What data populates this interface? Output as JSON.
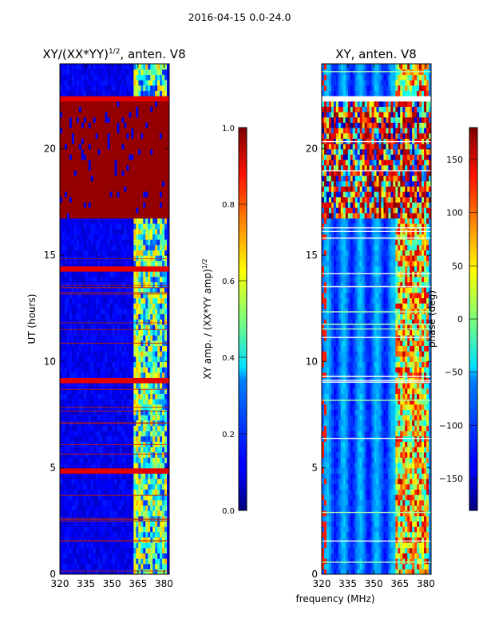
{
  "figure": {
    "suptitle": "2016-04-15 0.0-24.0",
    "shared_xlabel": "frequency (MHz)"
  },
  "chart_data": [
    {
      "type": "heatmap",
      "title": "XY/(XX*YY)^{1/2}, anten. V8",
      "title_main": "XY/(XX*YY)",
      "title_sup": "1/2",
      "title_rest": ", anten. V8",
      "xlabel": "",
      "ylabel": "UT (hours)",
      "xlim": [
        320,
        383
      ],
      "ylim": [
        0,
        24
      ],
      "xticks": [
        320,
        335,
        350,
        365,
        380
      ],
      "yticks": [
        0,
        5,
        10,
        15,
        20
      ],
      "colorbar": {
        "label_main": "XY amp. / (XX*YY amp)",
        "label_sup": "1/2",
        "range": [
          0.0,
          1.0
        ],
        "ticks": [
          0.0,
          0.2,
          0.4,
          0.6,
          0.8,
          1.0
        ],
        "tick_labels": [
          "0.0",
          "0.2",
          "0.4",
          "0.6",
          "0.8",
          "1.0"
        ],
        "colormap": "jet"
      },
      "features": {
        "saturated_band_ut": [
          16.8,
          22.2
        ],
        "rfi_band_mhz": [
          363,
          381
        ],
        "typical_level": 0.1
      }
    },
    {
      "type": "heatmap",
      "title": "XY, anten. V8",
      "xlabel": "",
      "ylabel": "",
      "xlim": [
        320,
        383
      ],
      "ylim": [
        0,
        24
      ],
      "xticks": [
        320,
        335,
        350,
        365,
        380
      ],
      "yticks": [
        0,
        5,
        10,
        15,
        20
      ],
      "colorbar": {
        "label_main": "phase (deg)",
        "range": [
          -180,
          180
        ],
        "ticks": [
          -150,
          -100,
          -50,
          0,
          50,
          100,
          150
        ],
        "tick_labels": [
          "−150",
          "−100",
          "−50",
          "0",
          "50",
          "100",
          "150"
        ],
        "colormap": "jet"
      },
      "features": {
        "rfi_band_mhz": [
          363,
          381
        ],
        "gap_ut": [
          22.2,
          22.6
        ]
      }
    }
  ]
}
